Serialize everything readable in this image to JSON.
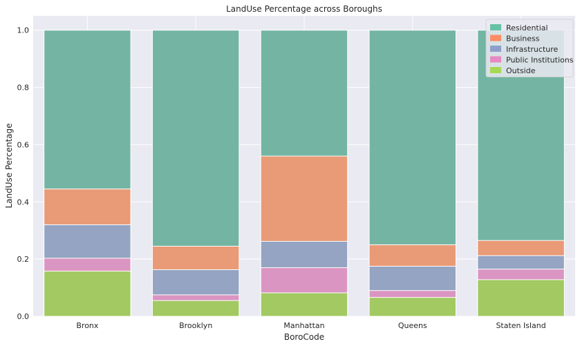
{
  "chart_data": {
    "type": "bar",
    "stacked": true,
    "title": "LandUse Percentage across Boroughs",
    "xlabel": "BoroCode",
    "ylabel": "LandUse Percentage",
    "ylim": [
      0,
      1.05
    ],
    "yticks": [
      "0.0",
      "0.2",
      "0.4",
      "0.6",
      "0.8",
      "1.0"
    ],
    "ytick_values": [
      0,
      0.2,
      0.4,
      0.6,
      0.8,
      1.0
    ],
    "grid": true,
    "legend_position": "top-right",
    "categories": [
      "Bronx",
      "Brooklyn",
      "Manhattan",
      "Queens",
      "Staten Island"
    ],
    "series": [
      {
        "name": "Residential",
        "color": "#73b5a2",
        "totals": [
          1.0,
          1.0,
          1.0,
          1.0,
          1.0
        ]
      },
      {
        "name": "Business",
        "color": "#e99a76",
        "totals": [
          0.445,
          0.245,
          0.56,
          0.25,
          0.265
        ]
      },
      {
        "name": "Infrastructure",
        "color": "#94a4c2",
        "totals": [
          0.32,
          0.163,
          0.262,
          0.175,
          0.212
        ]
      },
      {
        "name": "Public Institutions",
        "color": "#db95c2",
        "totals": [
          0.203,
          0.075,
          0.17,
          0.09,
          0.165
        ]
      },
      {
        "name": "Outside",
        "color": "#a2c962",
        "totals": [
          0.158,
          0.055,
          0.082,
          0.066,
          0.128
        ]
      }
    ],
    "legend_colors": {
      "Residential": "#66c2a5",
      "Business": "#fc8d62",
      "Infrastructure": "#8da0cb",
      "Public Institutions": "#e78ac3",
      "Outside": "#a6d854"
    }
  }
}
